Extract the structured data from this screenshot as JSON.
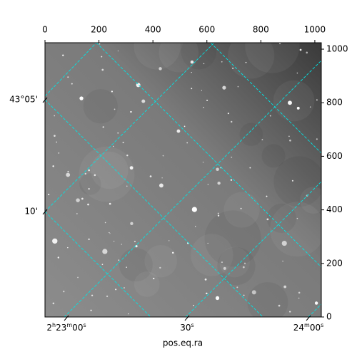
{
  "chart_data": {
    "type": "image",
    "xlabel": "pos.eq.ra",
    "xlim": [
      0,
      1024
    ],
    "xticks": [
      0,
      200,
      400,
      600,
      800,
      1000
    ],
    "ylim": [
      0,
      1024
    ],
    "yticks": [
      0,
      200,
      400,
      600,
      800,
      1000
    ],
    "ra_ticks": [
      "2h23m00s",
      "30s",
      "24m00s"
    ],
    "dec_ticks": [
      "43°05'",
      "10'"
    ],
    "grid_color": "#00e5e5"
  }
}
